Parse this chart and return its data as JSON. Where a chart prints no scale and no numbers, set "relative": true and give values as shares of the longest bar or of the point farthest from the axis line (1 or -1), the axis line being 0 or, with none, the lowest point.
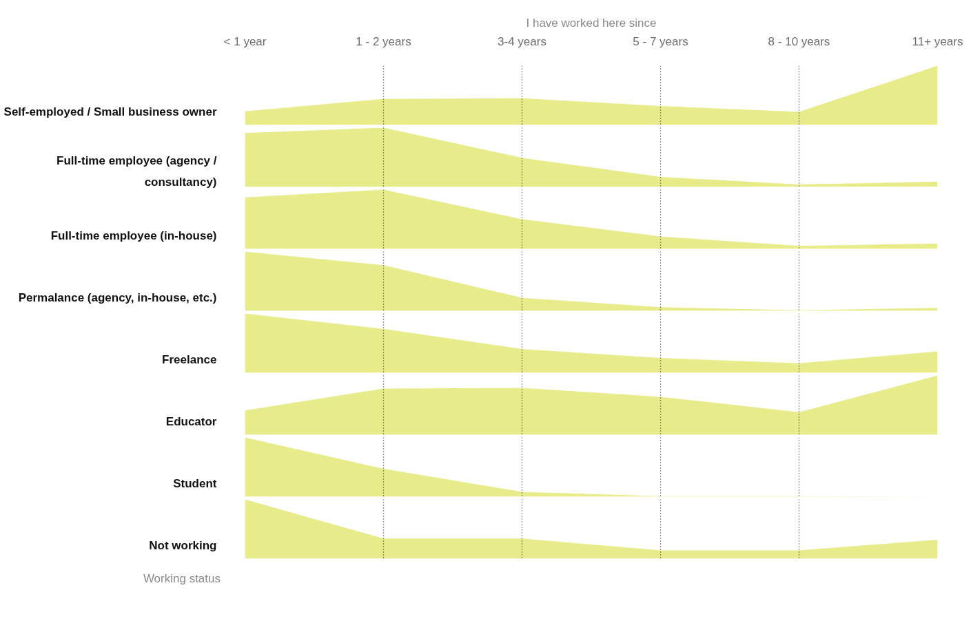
{
  "chart_data": [
    {
      "type": "area",
      "xlabel": "I have worked here since",
      "ylabel": "Self-employed / Small business owner",
      "categories": [
        "< 1 year",
        "1 - 2 years",
        "3-4 years",
        "5 - 7 years",
        "8 - 10 years",
        "11+ years"
      ],
      "values": [
        0.23,
        0.44,
        0.45,
        0.32,
        0.22,
        1
      ],
      "color": "#e8eb8a",
      "relative": true,
      "grid": "x",
      "line_style": "dotted",
      "tick_labels": "x"
    },
    {
      "type": "area",
      "ylabel": "Full-time employee (agency / consultancy)",
      "categories": [
        null,
        null,
        null,
        null,
        null,
        null
      ],
      "values": [
        0.91,
        1,
        0.49,
        0.17,
        0.04,
        0.09
      ],
      "color": "#e8eb8a",
      "relative": true,
      "grid": "x",
      "line_style": "dotted",
      "tick_labels": false
    },
    {
      "type": "area",
      "ylabel": "Full-time employee (in-house)",
      "categories": [
        null,
        null,
        null,
        null,
        null,
        null
      ],
      "values": [
        0.87,
        1,
        0.5,
        0.21,
        0.05,
        0.09
      ],
      "color": "#e8eb8a",
      "relative": true,
      "grid": "x",
      "line_style": "dotted",
      "tick_labels": false
    },
    {
      "type": "area",
      "ylabel": "Permalance (agency, in-house, etc.)",
      "categories": [
        null,
        null,
        null,
        null,
        null,
        null
      ],
      "values": [
        1,
        0.77,
        0.22,
        0.06,
        0.01,
        0.05
      ],
      "color": "#e8eb8a",
      "relative": true,
      "grid": "x",
      "line_style": "dotted",
      "tick_labels": false
    },
    {
      "type": "area",
      "ylabel": "Freelance",
      "categories": [
        null,
        null,
        null,
        null,
        null,
        null
      ],
      "values": [
        1,
        0.74,
        0.4,
        0.25,
        0.16,
        0.36
      ],
      "color": "#e8eb8a",
      "relative": true,
      "grid": "x",
      "line_style": "dotted",
      "tick_labels": false
    },
    {
      "type": "area",
      "ylabel": "Educator",
      "categories": [
        null,
        null,
        null,
        null,
        null,
        null
      ],
      "values": [
        0.41,
        0.78,
        0.79,
        0.64,
        0.38,
        1
      ],
      "color": "#e8eb8a",
      "relative": true,
      "grid": "x",
      "line_style": "dotted",
      "tick_labels": false
    },
    {
      "type": "area",
      "ylabel": "Student",
      "categories": [
        null,
        null,
        null,
        null,
        null,
        null
      ],
      "values": [
        1,
        0.47,
        0.08,
        0.01,
        0.01,
        0
      ],
      "color": "#e8eb8a",
      "relative": true,
      "grid": "x",
      "line_style": "dotted",
      "tick_labels": false
    },
    {
      "type": "area",
      "ylabel": "Not working",
      "annotations": [
        "Working status"
      ],
      "categories": [
        null,
        null,
        null,
        null,
        null,
        null
      ],
      "values": [
        1,
        0.34,
        0.34,
        0.14,
        0.14,
        0.32
      ],
      "color": "#e8eb8a",
      "relative": true,
      "grid": "x",
      "line_style": "dotted",
      "tick_labels": false
    }
  ]
}
